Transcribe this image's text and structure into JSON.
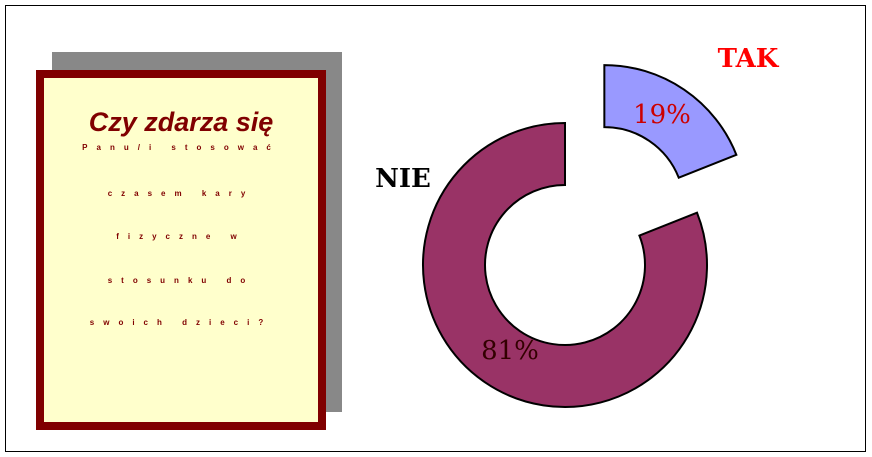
{
  "chart_data": {
    "type": "donut",
    "title": "Czy zdarza się",
    "subtitle_lines": [
      "Panu/i stosować",
      "czasem kary",
      "fizyczne w",
      "stosunku do",
      "swoich dzieci?"
    ],
    "categories": [
      "TAK",
      "NIE"
    ],
    "values": [
      19,
      81
    ],
    "value_labels": [
      "19%",
      "81%"
    ],
    "colors": [
      "#9999ff",
      "#993366"
    ]
  }
}
